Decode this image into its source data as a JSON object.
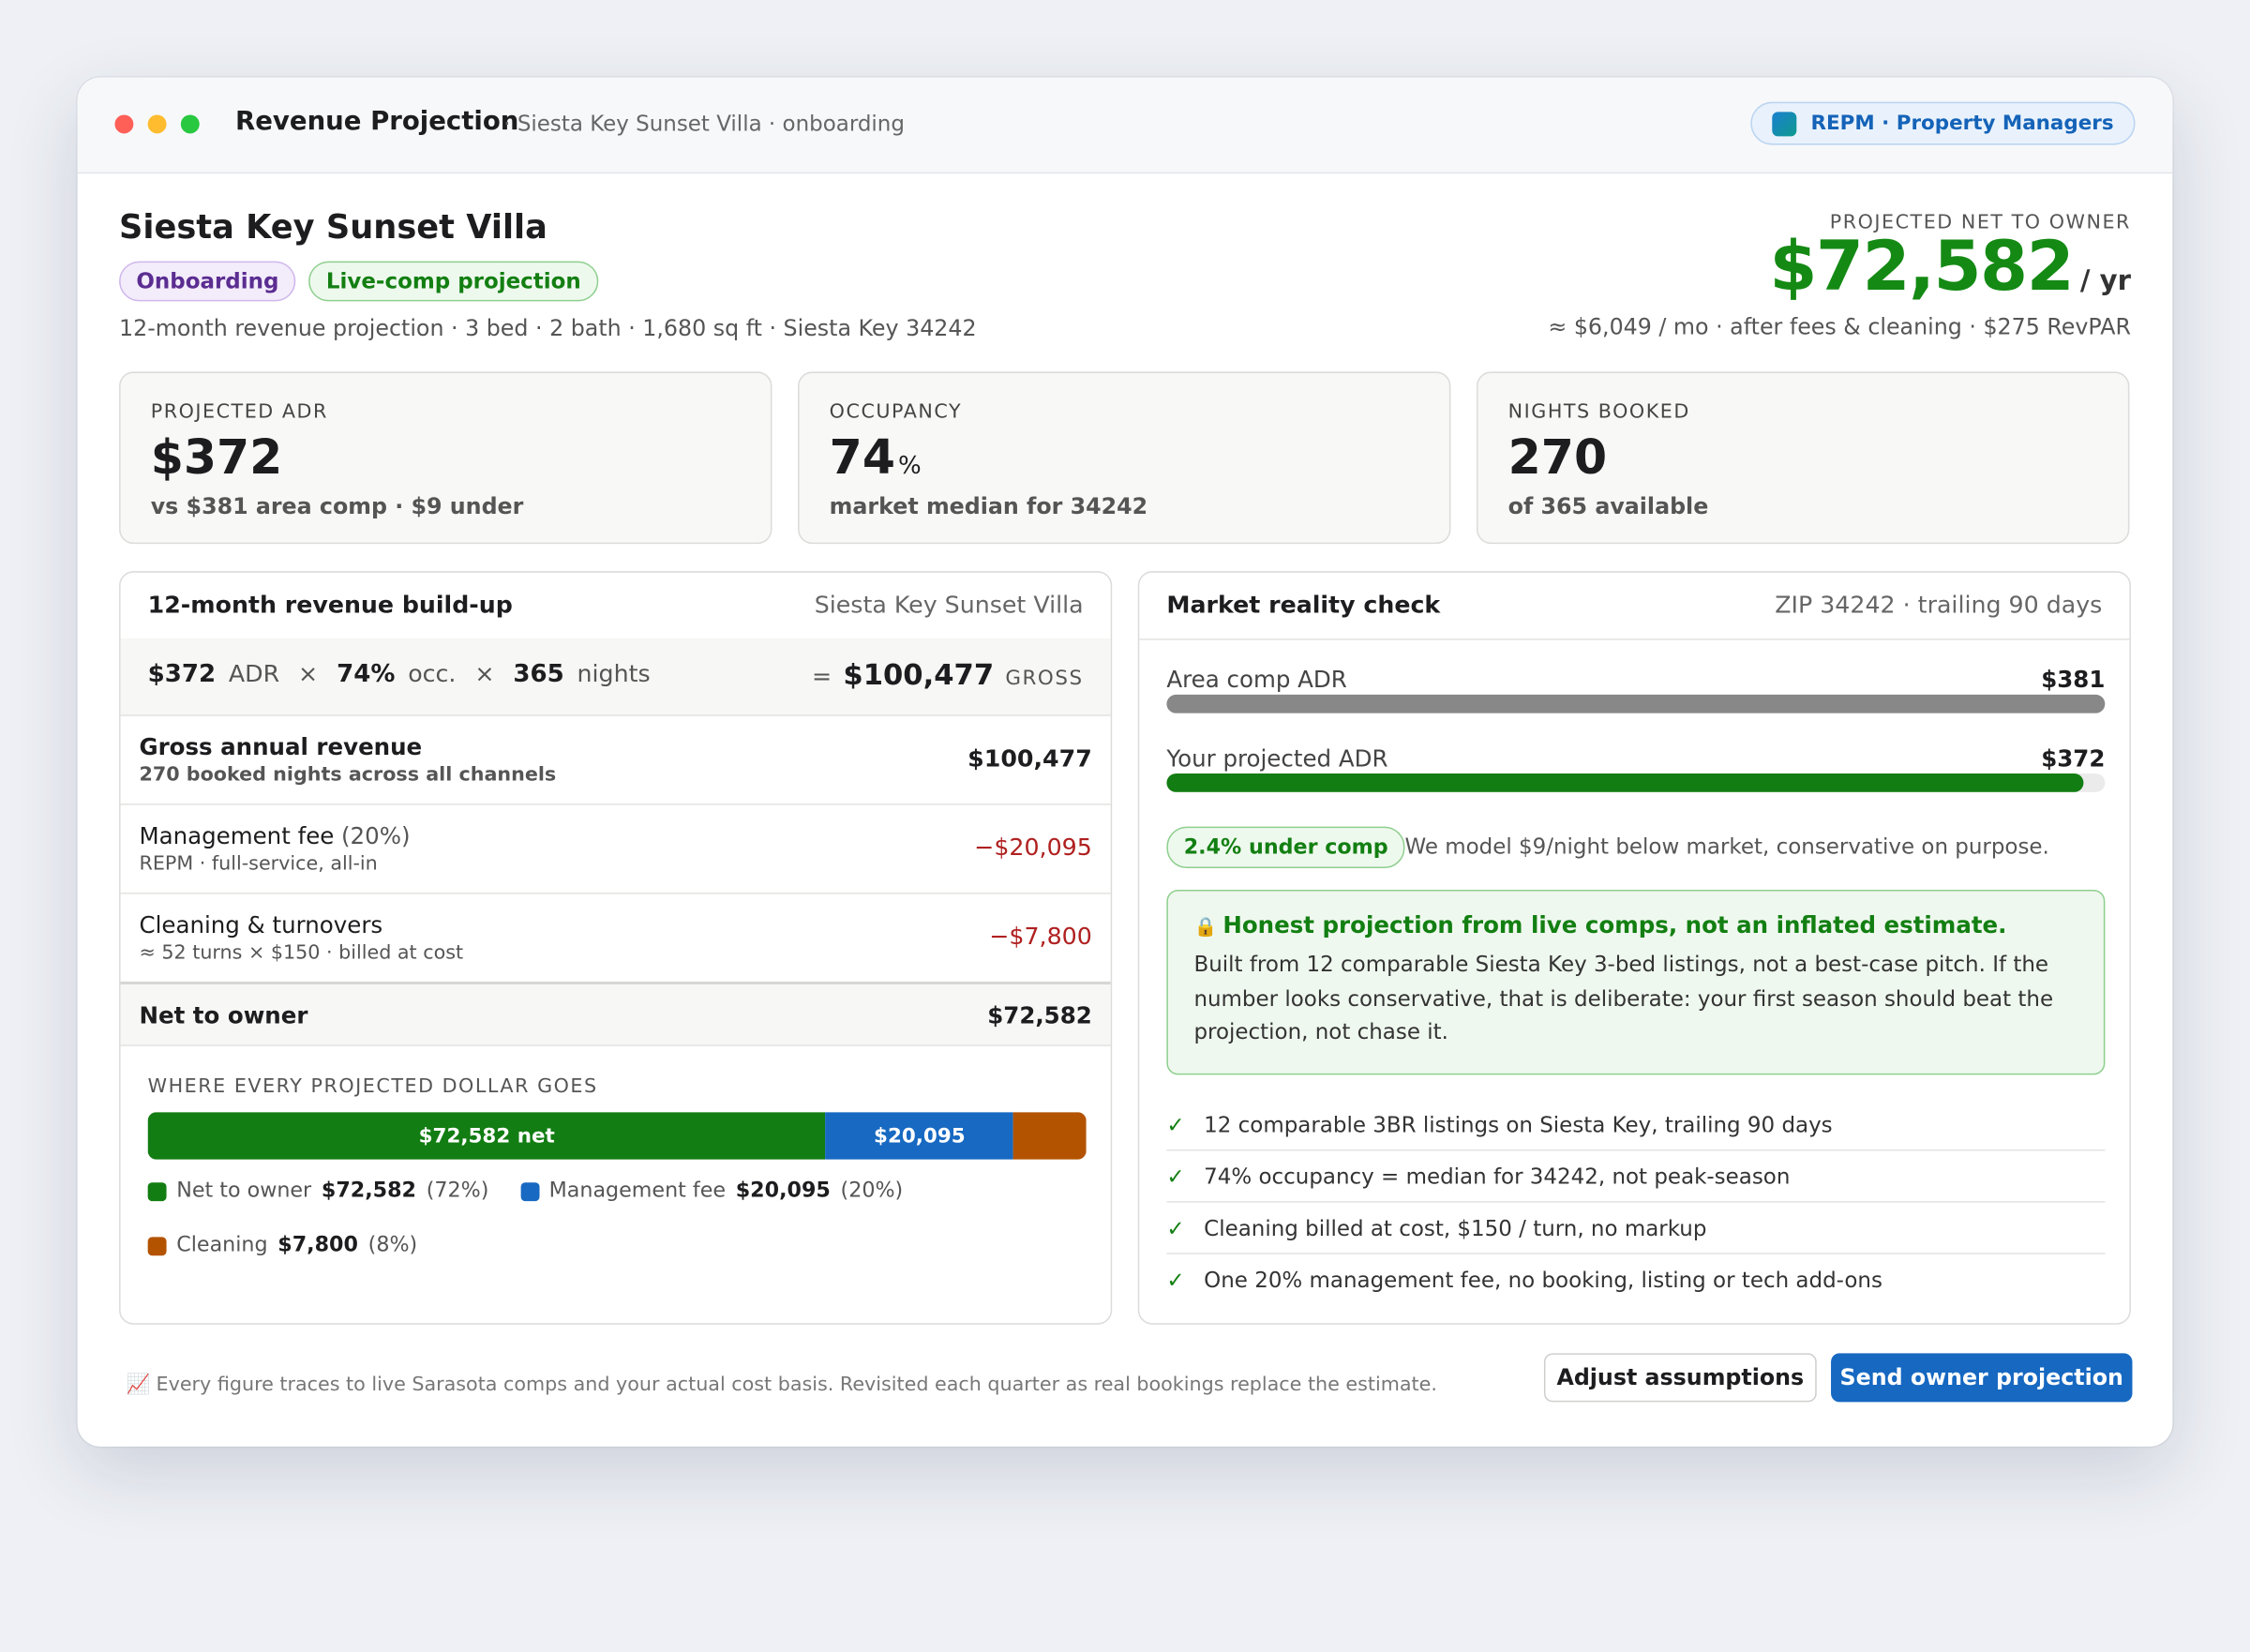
{
  "window": {
    "title": "Revenue Projection",
    "subtitle": "· Siesta Key Sunset Villa · onboarding",
    "badge": "REPM · Property Managers"
  },
  "property": {
    "name": "Siesta Key Sunset Villa",
    "tags": [
      "Onboarding",
      "Live-comp projection"
    ],
    "details": "12-month revenue projection · 3 bed · 2 bath · 1,680 sq ft · Siesta Key 34242"
  },
  "headline": {
    "label": "PROJECTED NET TO OWNER",
    "value": "$72,582",
    "unit": "/ yr",
    "note": "≈ $6,049 / mo · after fees & cleaning · $275 RevPAR"
  },
  "kpis": [
    {
      "label": "PROJECTED ADR",
      "value": "$372",
      "note": "vs $381 area comp · $9 under"
    },
    {
      "label": "OCCUPANCY",
      "value": "74",
      "unit": "%",
      "note": "market median for 34242"
    },
    {
      "label": "NIGHTS BOOKED",
      "value": "270",
      "note": "of 365 available"
    }
  ],
  "buildup": {
    "title": "12-month revenue build-up",
    "context": "Siesta Key Sunset Villa",
    "formula": {
      "adr": "$372",
      "adr_label": "ADR",
      "times": "×",
      "occ": "74%",
      "occ_label": "occ.",
      "nights": "365",
      "nights_label": "nights",
      "equals": "=",
      "gross": "$100,477",
      "gross_label": "GROSS"
    },
    "rows": [
      {
        "label": "Gross annual revenue",
        "sub": "270 booked nights across all channels",
        "amount": "$100,477"
      },
      {
        "label": "Management fee",
        "pct": "(20%)",
        "sub": "REPM · full-service, all-in",
        "amount": "−$20,095"
      },
      {
        "label": "Cleaning & turnovers",
        "sub": "≈ 52 turns × $150 · billed at cost",
        "amount": "−$7,800"
      }
    ],
    "net": {
      "label": "Net to owner",
      "amount": "$72,582"
    },
    "split": {
      "title": "WHERE EVERY PROJECTED DOLLAR GOES",
      "segments": [
        {
          "name": "Net to owner",
          "value": 72582,
          "label": "$72,582",
          "bar_label": "$72,582 net",
          "share": "(72%)",
          "color": "#127d12"
        },
        {
          "name": "Management fee",
          "value": 20095,
          "label": "$20,095",
          "bar_label": "$20,095",
          "share": "(20%)",
          "color": "#1769c2"
        },
        {
          "name": "Cleaning",
          "value": 7800,
          "label": "$7,800",
          "share": "(8%)",
          "color": "#b35300"
        }
      ]
    }
  },
  "market": {
    "title": "Market reality check",
    "context": "ZIP 34242 · trailing 90 days",
    "comparisons": [
      {
        "name": "Area comp ADR",
        "value": 381,
        "label": "$381",
        "color": "#888888"
      },
      {
        "name": "Your projected ADR",
        "value": 372,
        "label": "$372",
        "color": "#127d12"
      }
    ],
    "delta_tag": "2.4% under comp",
    "delta_note": "We model $9/night below market, conservative on purpose.",
    "callout": {
      "icon": "🔒",
      "title": "Honest projection from live comps, not an inflated estimate.",
      "body": "Built from 12 comparable Siesta Key 3-bed listings, not a best-case pitch. If the number looks conservative, that is deliberate: your first season should beat the projection, not chase it."
    },
    "check_icon": "✓",
    "checks": [
      "12 comparable 3BR listings on Siesta Key, trailing 90 days",
      "74% occupancy = median for 34242, not peak-season",
      "Cleaning billed at cost, $150 / turn, no markup",
      "One 20% management fee, no booking, listing or tech add-ons"
    ]
  },
  "footer": {
    "icon": "📈",
    "note": "Every figure traces to live Sarasota comps and your actual cost basis. Revisited each quarter as real bookings replace the estimate.",
    "buttons": [
      "Adjust assumptions",
      "Send owner projection"
    ]
  }
}
